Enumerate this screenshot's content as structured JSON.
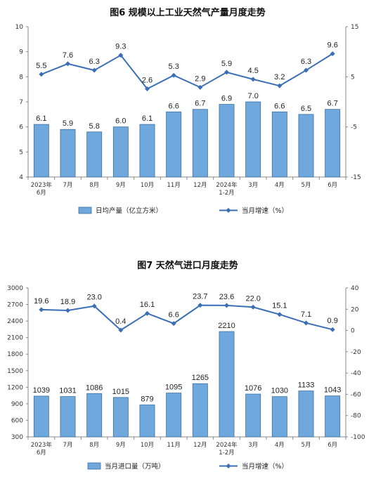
{
  "chart_data": [
    {
      "type": "bar",
      "title": "图6 规模以上工业天然气产量月度走势",
      "categories": [
        [
          "2023年",
          "6月"
        ],
        [
          "7月"
        ],
        [
          "8月"
        ],
        [
          "9月"
        ],
        [
          "10月"
        ],
        [
          "11月"
        ],
        [
          "12月"
        ],
        [
          "2024年",
          "1-2月"
        ],
        [
          "3月"
        ],
        [
          "4月"
        ],
        [
          "5月"
        ],
        [
          "6月"
        ]
      ],
      "ylim": [
        4,
        10
      ],
      "yticks": [
        "4",
        "5",
        "6",
        "7",
        "8",
        "9",
        "10"
      ],
      "y2lim": [
        -15,
        15
      ],
      "y2ticks": [
        "-15",
        "-5",
        "5",
        "15"
      ],
      "series": [
        {
          "name": "日均产量（亿立方米）",
          "kind": "bar",
          "axis": "left",
          "color": "#6fa8dc",
          "values": [
            6.1,
            5.9,
            5.8,
            6.0,
            6.1,
            6.6,
            6.7,
            6.9,
            7.0,
            6.6,
            6.5,
            6.7
          ],
          "labels": [
            "6.1",
            "5.9",
            "5.8",
            "6.0",
            "6.1",
            "6.6",
            "6.7",
            "6.9",
            "7.0",
            "6.6",
            "6.5",
            "6.7"
          ]
        },
        {
          "name": "当月增速（%）",
          "kind": "line",
          "axis": "right",
          "color": "#3a6fb5",
          "values": [
            5.5,
            7.6,
            6.3,
            9.3,
            2.6,
            5.3,
            2.9,
            5.9,
            4.5,
            3.2,
            6.3,
            9.6
          ],
          "labels": [
            "5.5",
            "7.6",
            "6.3",
            "9.3",
            "2.6",
            "5.3",
            "2.9",
            "5.9",
            "4.5",
            "3.2",
            "6.3",
            "9.6"
          ]
        }
      ]
    },
    {
      "type": "bar",
      "title": "图7 天然气进口月度走势",
      "categories": [
        [
          "2023年",
          "6月"
        ],
        [
          "7月"
        ],
        [
          "8月"
        ],
        [
          "9月"
        ],
        [
          "10月"
        ],
        [
          "11月"
        ],
        [
          "12月"
        ],
        [
          "2024年",
          "1-2月"
        ],
        [
          "3月"
        ],
        [
          "4月"
        ],
        [
          "5月"
        ],
        [
          "6月"
        ]
      ],
      "ylim": [
        300,
        3000
      ],
      "yticks": [
        "300",
        "600",
        "900",
        "1200",
        "1500",
        "1800",
        "2100",
        "2400",
        "2700",
        "3000"
      ],
      "y2lim": [
        -100,
        40
      ],
      "y2ticks": [
        "-100",
        "-80",
        "-60",
        "-40",
        "-20",
        "0",
        "20",
        "40"
      ],
      "series": [
        {
          "name": "当月进口量（万吨）",
          "kind": "bar",
          "axis": "left",
          "color": "#6fa8dc",
          "values": [
            1039,
            1031,
            1086,
            1015,
            879,
            1095,
            1265,
            2210,
            1076,
            1030,
            1133,
            1043
          ],
          "labels": [
            "1039",
            "1031",
            "1086",
            "1015",
            "879",
            "1095",
            "1265",
            "2210",
            "1076",
            "1030",
            "1133",
            "1043"
          ]
        },
        {
          "name": "当月增速（%）",
          "kind": "line",
          "axis": "right",
          "color": "#3a6fb5",
          "values": [
            19.6,
            18.9,
            23.0,
            0.4,
            16.1,
            6.6,
            23.7,
            23.6,
            22.0,
            15.1,
            7.1,
            0.9
          ],
          "labels": [
            "19.6",
            "18.9",
            "23.0",
            "0.4",
            "16.1",
            "6.6",
            "23.7",
            "23.6",
            "22.0",
            "15.1",
            "7.1",
            "0.9"
          ]
        }
      ]
    }
  ]
}
